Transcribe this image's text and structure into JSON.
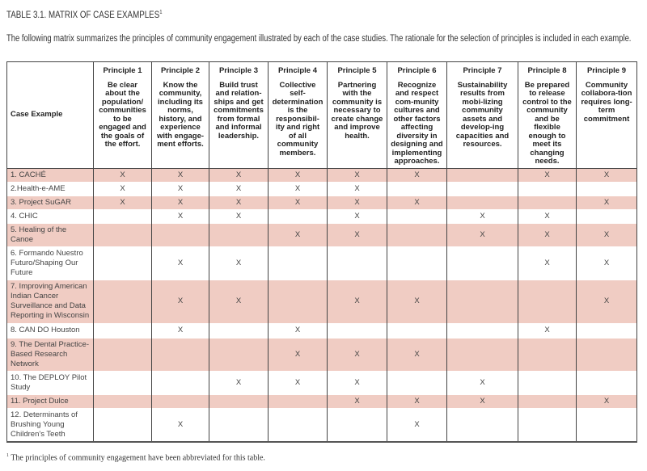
{
  "title": "TABLE 3.1. MATRIX OF CASE EXAMPLES",
  "title_footnote_mark": "1",
  "intro": "The following matrix summarizes the principles of community engagement illustrated by each of the case studies. The rationale for the selection of principles is included in each example.",
  "table": {
    "case_header": "Case Example",
    "principles": [
      {
        "name": "Principle 1",
        "desc": "Be clear about the population/ communities to be engaged and the goals of the effort."
      },
      {
        "name": "Principle 2",
        "desc": "Know the community, including its norms, history, and experience with engage-ment efforts."
      },
      {
        "name": "Principle 3",
        "desc": "Build trust and relation-ships and get commitments from formal and informal leadership."
      },
      {
        "name": "Principle 4",
        "desc": "Collective self-determination is the responsibil-ity and right of all community members."
      },
      {
        "name": "Principle 5",
        "desc": "Partnering with the community is necessary to create change and improve health."
      },
      {
        "name": "Principle 6",
        "desc": "Recognize and respect com-munity cultures and other factors affecting diversity in designing and implementing approaches."
      },
      {
        "name": "Principle 7",
        "desc": "Sustainability results from mobi-lizing community assets and develop-ing capacities and resources."
      },
      {
        "name": "Principle 8",
        "desc": "Be prepared to release control to the community and be flexible enough to meet its changing needs."
      },
      {
        "name": "Principle 9",
        "desc": "Community collabora-tion requires long-term commitment"
      }
    ],
    "rows": [
      {
        "name": "1. CACHÉ",
        "cells": [
          "X",
          "X",
          "X",
          "X",
          "X",
          "X",
          "",
          "X",
          "X"
        ]
      },
      {
        "name": "2.Health-e-AME",
        "cells": [
          "X",
          "X",
          "X",
          "X",
          "X",
          "",
          "",
          "",
          ""
        ]
      },
      {
        "name": "3. Project SuGAR",
        "cells": [
          "X",
          "X",
          "X",
          "X",
          "X",
          "X",
          "",
          "",
          "X"
        ]
      },
      {
        "name": "4. CHIC",
        "cells": [
          "",
          "X",
          "X",
          "",
          "X",
          "",
          "X",
          "X",
          ""
        ]
      },
      {
        "name": "5. Healing of the Canoe",
        "cells": [
          "",
          "",
          "",
          "X",
          "X",
          "",
          "X",
          "X",
          "X"
        ]
      },
      {
        "name": "6. Formando Nuestro Futuro/Shaping Our Future",
        "cells": [
          "",
          "X",
          "X",
          "",
          "",
          "",
          "",
          "X",
          "X"
        ]
      },
      {
        "name": "7. Improving American Indian Cancer Surveillance and Data Reporting in Wisconsin",
        "cells": [
          "",
          "X",
          "X",
          "",
          "X",
          "X",
          "",
          "",
          "X"
        ]
      },
      {
        "name": "8. CAN DO Houston",
        "cells": [
          "",
          "X",
          "",
          "X",
          "",
          "",
          "",
          "X",
          ""
        ]
      },
      {
        "name": "9. The Dental Practice-Based Research Network",
        "cells": [
          "",
          "",
          "",
          "X",
          "X",
          "X",
          "",
          "",
          ""
        ]
      },
      {
        "name": "10. The DEPLOY Pilot Study",
        "cells": [
          "",
          "",
          "X",
          "X",
          "X",
          "",
          "X",
          "",
          ""
        ]
      },
      {
        "name": "11. Project Dulce",
        "cells": [
          "",
          "",
          "",
          "",
          "X",
          "X",
          "X",
          "",
          "X"
        ]
      },
      {
        "name": "12. Determinants of Brushing Young Children's Teeth",
        "cells": [
          "",
          "X",
          "",
          "",
          "",
          "X",
          "",
          "",
          ""
        ]
      }
    ]
  },
  "footnote_mark": "1",
  "footnote": " The principles of community engagement have been abbreviated for this table.",
  "colors": {
    "shade": "#f0ccc3",
    "border": "#444444"
  }
}
